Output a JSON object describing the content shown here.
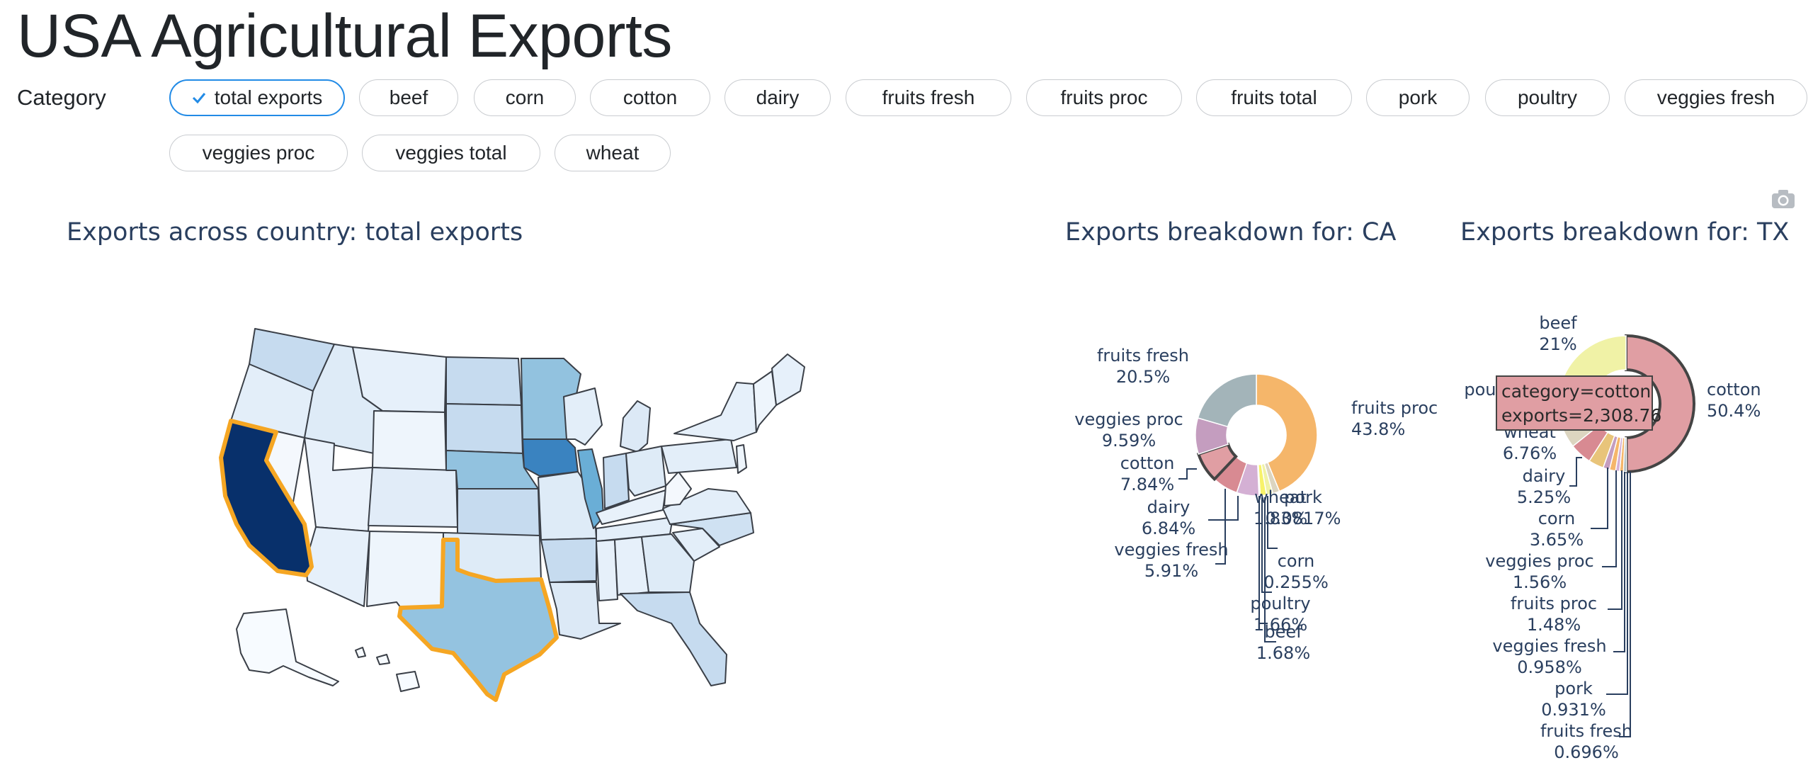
{
  "page": {
    "title": "USA Agricultural Exports",
    "filter_label": "Category"
  },
  "categories": [
    "total exports",
    "beef",
    "corn",
    "cotton",
    "dairy",
    "fruits fresh",
    "fruits proc",
    "fruits total",
    "pork",
    "poultry",
    "veggies fresh",
    "veggies proc",
    "veggies total",
    "wheat"
  ],
  "selected_category": "total exports",
  "icons": {
    "selected_chip": "check-icon",
    "toolbar": "camera-icon"
  },
  "colors": {
    "highlight_outline": "#f5a623",
    "map_scale": [
      "#f7fbff",
      "#deebf7",
      "#c6dbef",
      "#9ecae1",
      "#6baed6",
      "#4292c6",
      "#2171b5",
      "#08306b"
    ],
    "chip_selected_border": "#228be6"
  },
  "chart_data": [
    {
      "type": "choropleth",
      "title": "Exports across country: total exports",
      "highlighted_states": [
        "CA",
        "TX"
      ],
      "state_shading_levels": {
        "CA": 7,
        "IA": 5,
        "IL": 4,
        "NE": 3,
        "TX": 3,
        "MN": 3,
        "KS": 2,
        "ND": 2,
        "SD": 2,
        "IN": 2,
        "WA": 2,
        "AR": 2,
        "NC": 1,
        "OH": 1,
        "MO": 1,
        "WI": 1,
        "FL": 1,
        "ID": 1,
        "MI": 1
      }
    },
    {
      "type": "pie",
      "title": "Exports breakdown for: CA",
      "slices": [
        {
          "label": "fruits proc",
          "percent": "43.8%",
          "value": 43.8,
          "color": "#f5b66a"
        },
        {
          "label": "wheat",
          "percent": "1.83%",
          "value": 1.83,
          "color": "#dcd5c0"
        },
        {
          "label": "beef",
          "percent": "1.68%",
          "value": 1.68,
          "color": "#f0f2a6"
        },
        {
          "label": "poultry",
          "percent": "1.66%",
          "value": 1.66,
          "color": "#f7f26a"
        },
        {
          "label": "corn",
          "percent": "0.255%",
          "value": 0.255,
          "color": "#e8c47a"
        },
        {
          "label": "pork",
          "percent": "0.0817%",
          "value": 0.0817,
          "color": "#f5b66a"
        },
        {
          "label": "veggies fresh",
          "percent": "5.91%",
          "value": 5.91,
          "color": "#d4b0d4"
        },
        {
          "label": "dairy",
          "percent": "6.84%",
          "value": 6.84,
          "color": "#d88a92"
        },
        {
          "label": "cotton",
          "percent": "7.84%",
          "value": 7.84,
          "color": "#e09ea3"
        },
        {
          "label": "veggies proc",
          "percent": "9.59%",
          "value": 9.59,
          "color": "#c49dbf"
        },
        {
          "label": "fruits fresh",
          "percent": "20.5%",
          "value": 20.5,
          "color": "#a3b4b9"
        }
      ]
    },
    {
      "type": "pie",
      "title": "Exports breakdown for: TX",
      "slices": [
        {
          "label": "cotton",
          "percent": "50.4%",
          "value": 50.4,
          "color": "#e09ea3"
        },
        {
          "label": "fruits fresh",
          "percent": "0.696%",
          "value": 0.696,
          "color": "#a3b4b9"
        },
        {
          "label": "pork",
          "percent": "0.931%",
          "value": 0.931,
          "color": "#f5b66a"
        },
        {
          "label": "veggies fresh",
          "percent": "0.958%",
          "value": 0.958,
          "color": "#d4b0d4"
        },
        {
          "label": "fruits proc",
          "percent": "1.48%",
          "value": 1.48,
          "color": "#f5b66a"
        },
        {
          "label": "veggies proc",
          "percent": "1.56%",
          "value": 1.56,
          "color": "#c49dbf"
        },
        {
          "label": "corn",
          "percent": "3.65%",
          "value": 3.65,
          "color": "#e8c47a"
        },
        {
          "label": "dairy",
          "percent": "5.25%",
          "value": 5.25,
          "color": "#d88a92"
        },
        {
          "label": "wheat",
          "percent": "6.76%",
          "value": 6.76,
          "color": "#dcd5c0"
        },
        {
          "label": "poultry",
          "percent": "",
          "value": 8.3,
          "color": "#f7f26a"
        },
        {
          "label": "beef",
          "percent": "21%",
          "value": 21,
          "color": "#f0f2a6"
        }
      ],
      "hover": {
        "line1": "category=cotton",
        "line2": "exports=2,308.76"
      }
    }
  ]
}
